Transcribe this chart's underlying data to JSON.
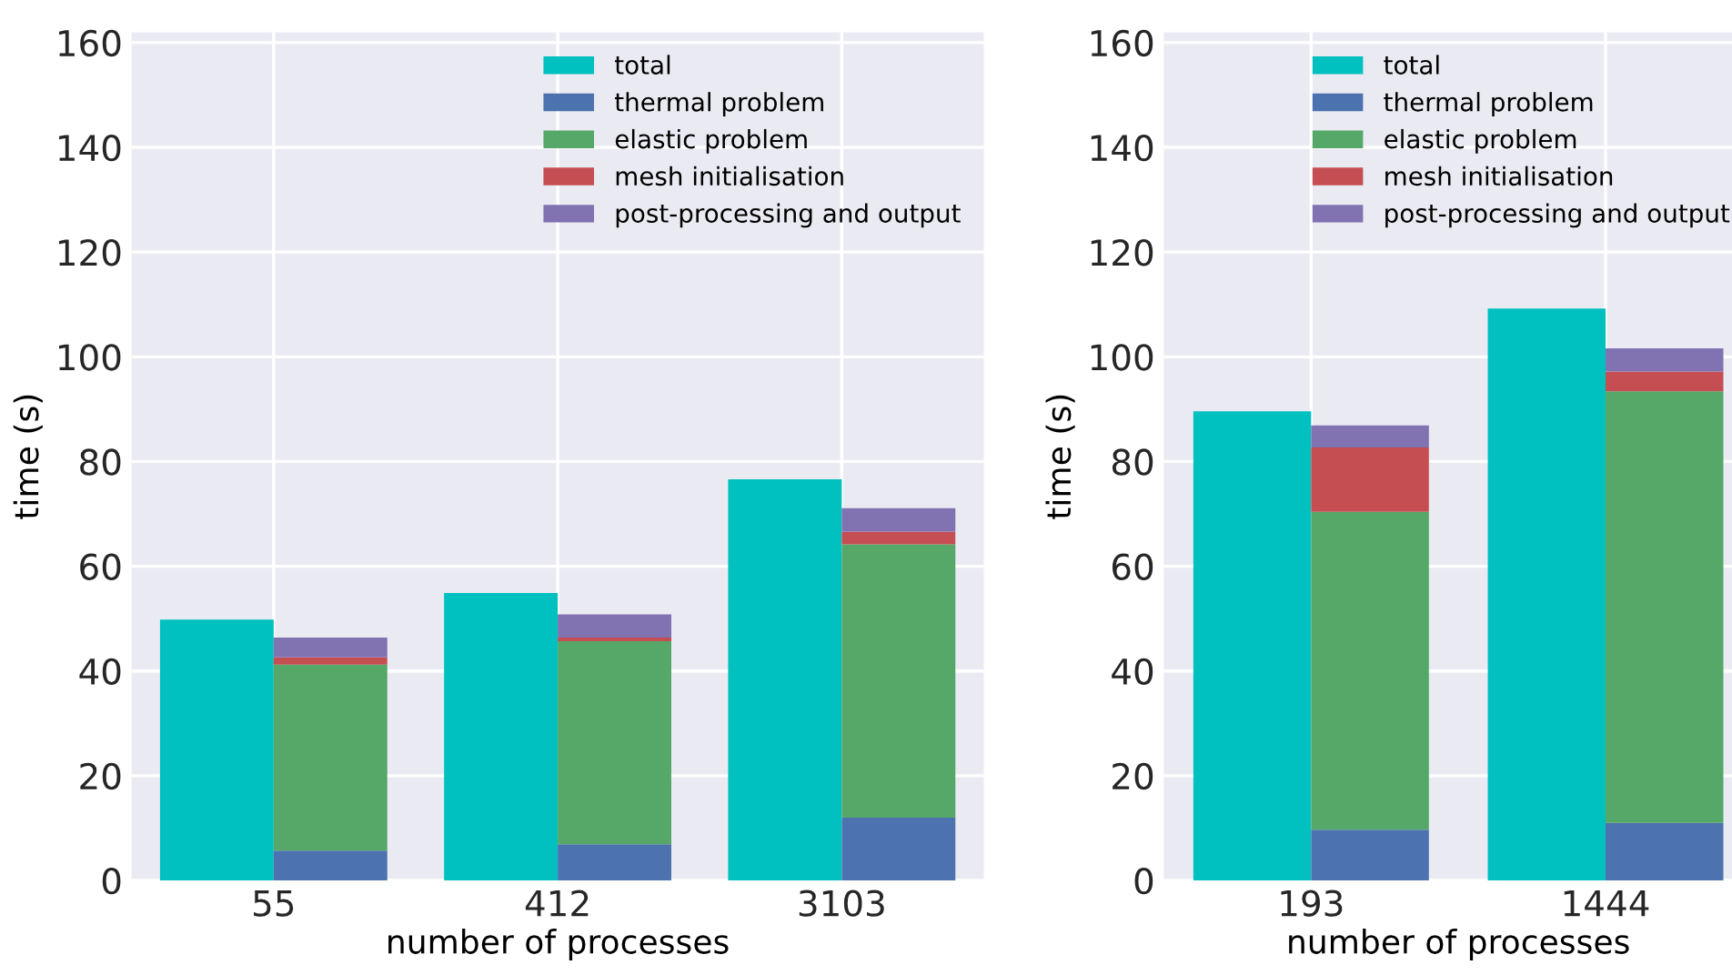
{
  "chart_data": [
    {
      "type": "bar",
      "categories": [
        "55",
        "412",
        "3103"
      ],
      "xlabel": "number of processes",
      "ylabel": "time (s)",
      "ylim": [
        0,
        162
      ],
      "yticks": [
        0,
        20,
        40,
        60,
        80,
        100,
        120,
        140,
        160
      ],
      "grid": true,
      "legend": "top right",
      "series": [
        {
          "name": "total",
          "color": "#00c0c0",
          "values": [
            49.8,
            54.9,
            76.6
          ]
        },
        {
          "name": "thermal problem",
          "color": "#4c72b0",
          "base": [
            0,
            0,
            0
          ],
          "values": [
            5.7,
            6.9,
            12.0
          ]
        },
        {
          "name": "elastic problem",
          "color": "#55a868",
          "base": [
            5.7,
            6.9,
            12.0
          ],
          "values": [
            35.5,
            38.8,
            52.2
          ]
        },
        {
          "name": "mesh initialisation",
          "color": "#c44e52",
          "base": [
            41.2,
            45.7,
            64.2
          ],
          "values": [
            1.4,
            0.7,
            2.4
          ]
        },
        {
          "name": "post-processing and output",
          "color": "#8172b2",
          "base": [
            42.6,
            46.4,
            66.6
          ],
          "values": [
            3.8,
            4.4,
            4.5
          ]
        }
      ]
    },
    {
      "type": "bar",
      "categories": [
        "193",
        "1444"
      ],
      "xlabel": "number of processes",
      "ylabel": "time (s)",
      "ylim": [
        0,
        162
      ],
      "yticks": [
        0,
        20,
        40,
        60,
        80,
        100,
        120,
        140,
        160
      ],
      "grid": true,
      "legend": "top right",
      "series": [
        {
          "name": "total",
          "color": "#00c0c0",
          "values": [
            89.6,
            109.2
          ]
        },
        {
          "name": "thermal problem",
          "color": "#4c72b0",
          "base": [
            0,
            0
          ],
          "values": [
            9.7,
            11.0
          ]
        },
        {
          "name": "elastic problem",
          "color": "#55a868",
          "base": [
            9.7,
            11.0
          ],
          "values": [
            60.7,
            82.4
          ]
        },
        {
          "name": "mesh initialisation",
          "color": "#c44e52",
          "base": [
            70.4,
            93.4
          ],
          "values": [
            12.3,
            3.8
          ]
        },
        {
          "name": "post-processing and output",
          "color": "#8172b2",
          "base": [
            82.7,
            97.2
          ],
          "values": [
            4.2,
            4.4
          ]
        }
      ]
    }
  ]
}
